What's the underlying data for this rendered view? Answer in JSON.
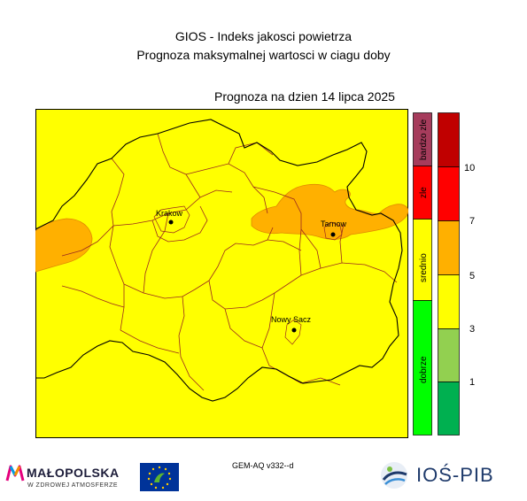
{
  "header": {
    "title_line1": "GIOS - Indeks jakosci powietrza",
    "title_line2": "Prognoza maksymalnej wartosci w ciagu doby",
    "date_line": "Prognoza na dzien  14 lipca 2025"
  },
  "map": {
    "background_color": "#ffff00",
    "cities": [
      {
        "name": "Krakow"
      },
      {
        "name": "Tarnow"
      },
      {
        "name": "Nowy Sacz"
      }
    ],
    "colors": {
      "border": "#9b2b1e",
      "area_fill": "#ffb000",
      "outline": "#000000"
    }
  },
  "legend": {
    "categories": [
      {
        "label": "bardzo zle",
        "color": "#a63c5c"
      },
      {
        "label": "zle",
        "color": "#ff0000"
      },
      {
        "label": "srednio",
        "color": "#ffff00"
      },
      {
        "label": "dobrze",
        "color": "#00ff00"
      }
    ],
    "scale": [
      {
        "color": "#c00000"
      },
      {
        "color": "#ff0000"
      },
      {
        "color": "#ffb000"
      },
      {
        "color": "#ffff00"
      },
      {
        "color": "#92d050"
      },
      {
        "color": "#00b050"
      }
    ],
    "tick_labels": [
      "10",
      "7",
      "5",
      "3",
      "1"
    ]
  },
  "footer": {
    "model_label": "GEM-AQ v332--d",
    "malopolska_name": "MAŁOPOLSKA",
    "malopolska_tagline": "W ZDROWEJ ATMOSFERZE",
    "ios_name": "IOŚ-PIB"
  }
}
